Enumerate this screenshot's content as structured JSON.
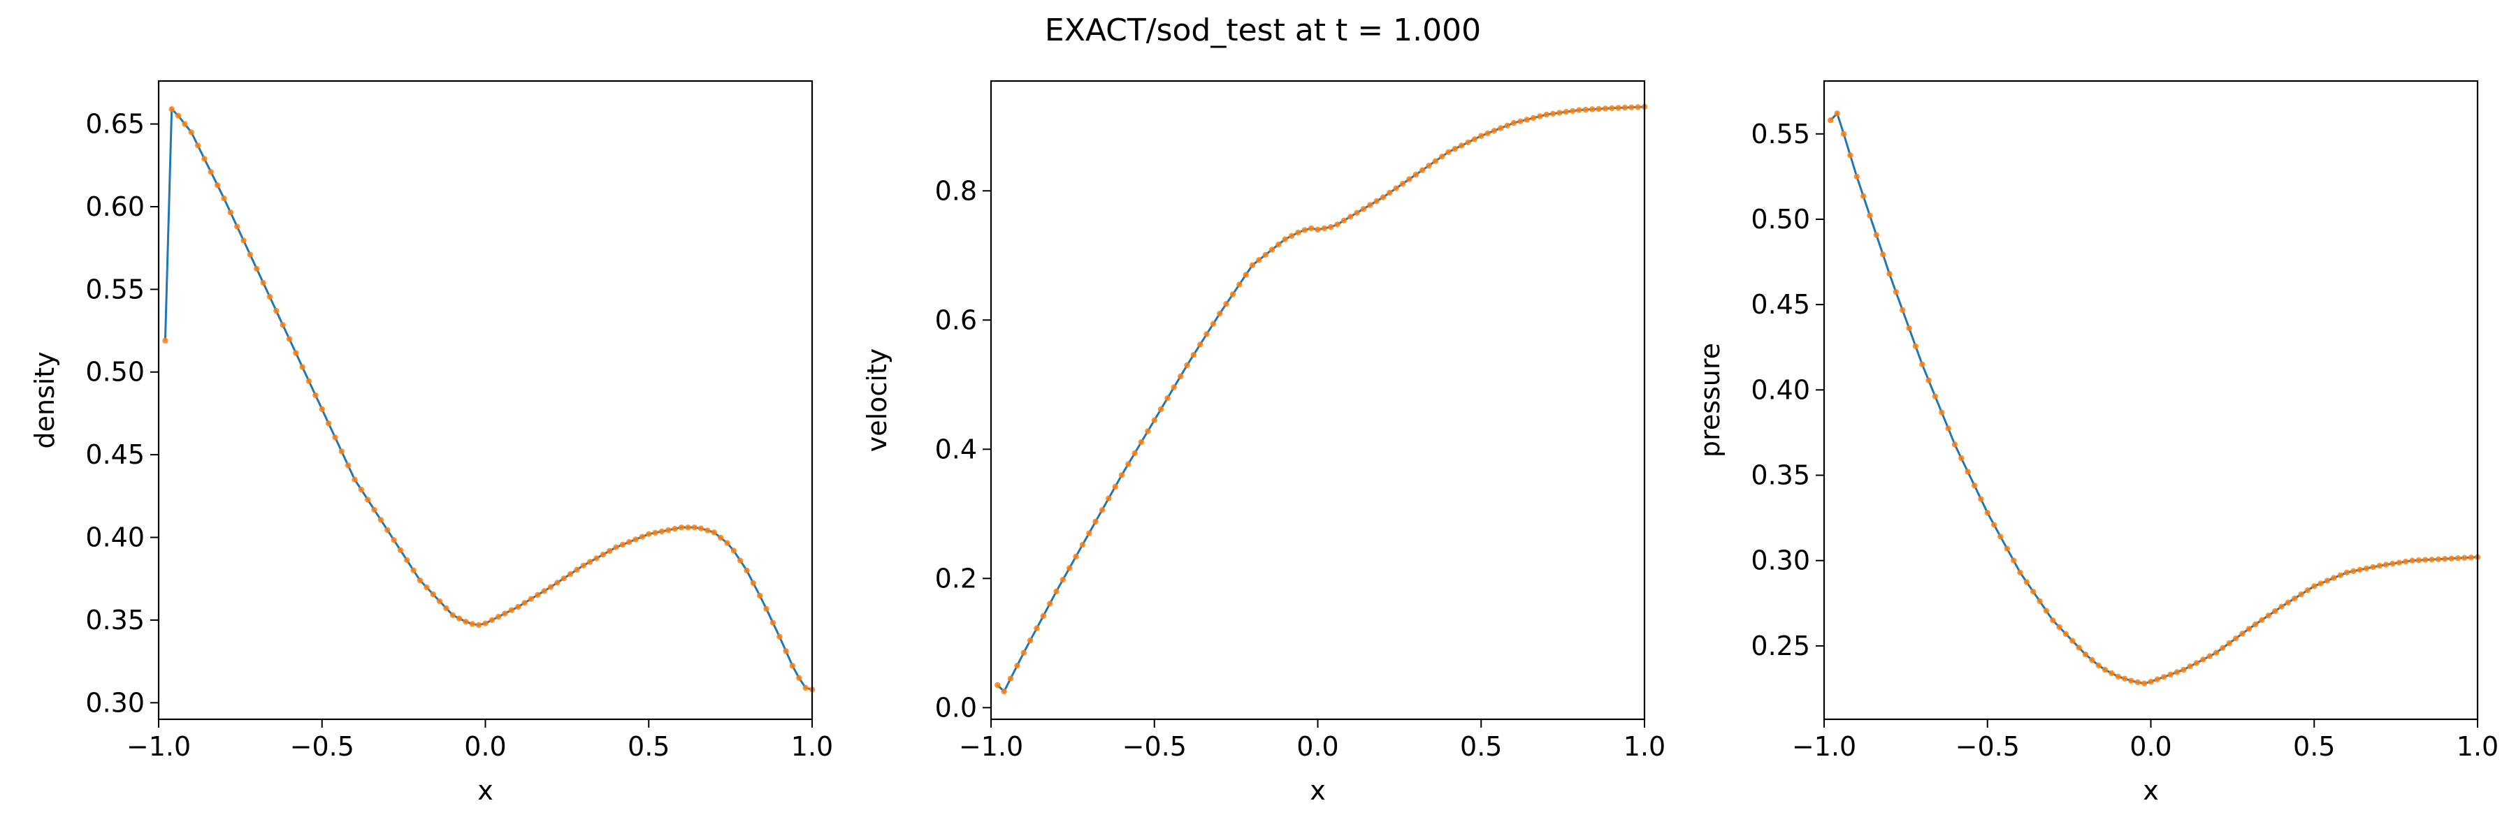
{
  "figure_title": "EXACT/sod_test at t = 1.000",
  "style": {
    "line_color": "#1f77b4",
    "marker_color": "#ff7f0e"
  },
  "chart_data": [
    {
      "type": "line",
      "xlabel": "x",
      "ylabel": "density",
      "xlim": [
        -1.0,
        1.0
      ],
      "ylim": [
        0.29,
        0.676
      ],
      "xticks": [
        -1.0,
        -0.5,
        0.0,
        0.5,
        1.0
      ],
      "xtick_labels": [
        "−1.0",
        "−0.5",
        "0.0",
        "0.5",
        "1.0"
      ],
      "yticks": [
        0.3,
        0.35,
        0.4,
        0.45,
        0.5,
        0.55,
        0.6,
        0.65
      ],
      "ytick_labels": [
        "0.30",
        "0.35",
        "0.40",
        "0.45",
        "0.50",
        "0.55",
        "0.60",
        "0.65"
      ],
      "n_points": 100,
      "series": [
        {
          "x": [
            -0.98,
            -0.96,
            -0.94,
            -0.9,
            -0.8,
            -0.6,
            -0.4,
            -0.2,
            -0.1,
            -0.05,
            -0.02,
            0.0,
            0.1,
            0.2,
            0.3,
            0.4,
            0.5,
            0.6,
            0.65,
            0.7,
            0.75,
            0.8,
            0.85,
            0.9,
            0.95,
            0.98,
            1.0
          ],
          "y": [
            0.519,
            0.659,
            0.655,
            0.645,
            0.605,
            0.52,
            0.435,
            0.374,
            0.353,
            0.348,
            0.347,
            0.348,
            0.358,
            0.37,
            0.383,
            0.394,
            0.402,
            0.406,
            0.406,
            0.403,
            0.395,
            0.38,
            0.361,
            0.34,
            0.318,
            0.309,
            0.308
          ]
        }
      ]
    },
    {
      "type": "line",
      "xlabel": "x",
      "ylabel": "velocity",
      "xlim": [
        -1.0,
        1.0
      ],
      "ylim": [
        -0.018,
        0.97
      ],
      "xticks": [
        -1.0,
        -0.5,
        0.0,
        0.5,
        1.0
      ],
      "xtick_labels": [
        "−1.0",
        "−0.5",
        "0.0",
        "0.5",
        "1.0"
      ],
      "yticks": [
        0.0,
        0.2,
        0.4,
        0.6,
        0.8
      ],
      "ytick_labels": [
        "0.0",
        "0.2",
        "0.4",
        "0.6",
        "0.8"
      ],
      "n_points": 100,
      "series": [
        {
          "x": [
            -0.98,
            -0.96,
            -0.94,
            -0.9,
            -0.8,
            -0.7,
            -0.6,
            -0.5,
            -0.4,
            -0.3,
            -0.2,
            -0.1,
            -0.05,
            -0.02,
            0.0,
            0.05,
            0.1,
            0.2,
            0.3,
            0.4,
            0.5,
            0.6,
            0.7,
            0.8,
            0.9,
            1.0
          ],
          "y": [
            0.035,
            0.025,
            0.045,
            0.085,
            0.18,
            0.27,
            0.36,
            0.445,
            0.53,
            0.61,
            0.685,
            0.725,
            0.738,
            0.742,
            0.74,
            0.745,
            0.76,
            0.79,
            0.825,
            0.86,
            0.885,
            0.905,
            0.918,
            0.925,
            0.928,
            0.93
          ]
        }
      ]
    },
    {
      "type": "line",
      "xlabel": "x",
      "ylabel": "pressure",
      "xlim": [
        -1.0,
        1.0
      ],
      "ylim": [
        0.207,
        0.581
      ],
      "xticks": [
        -1.0,
        -0.5,
        0.0,
        0.5,
        1.0
      ],
      "xtick_labels": [
        "−1.0",
        "−0.5",
        "0.0",
        "0.5",
        "1.0"
      ],
      "yticks": [
        0.25,
        0.3,
        0.35,
        0.4,
        0.45,
        0.5,
        0.55
      ],
      "ytick_labels": [
        "0.25",
        "0.30",
        "0.35",
        "0.40",
        "0.45",
        "0.50",
        "0.55"
      ],
      "n_points": 100,
      "series": [
        {
          "x": [
            -0.98,
            -0.96,
            -0.94,
            -0.9,
            -0.8,
            -0.7,
            -0.6,
            -0.5,
            -0.4,
            -0.3,
            -0.2,
            -0.15,
            -0.1,
            -0.05,
            -0.02,
            0.0,
            0.1,
            0.2,
            0.3,
            0.4,
            0.5,
            0.6,
            0.7,
            0.8,
            0.9,
            1.0
          ],
          "y": [
            0.558,
            0.562,
            0.55,
            0.525,
            0.468,
            0.415,
            0.368,
            0.328,
            0.293,
            0.265,
            0.245,
            0.237,
            0.232,
            0.229,
            0.228,
            0.229,
            0.236,
            0.246,
            0.26,
            0.273,
            0.285,
            0.293,
            0.297,
            0.3,
            0.301,
            0.302
          ]
        }
      ]
    }
  ]
}
